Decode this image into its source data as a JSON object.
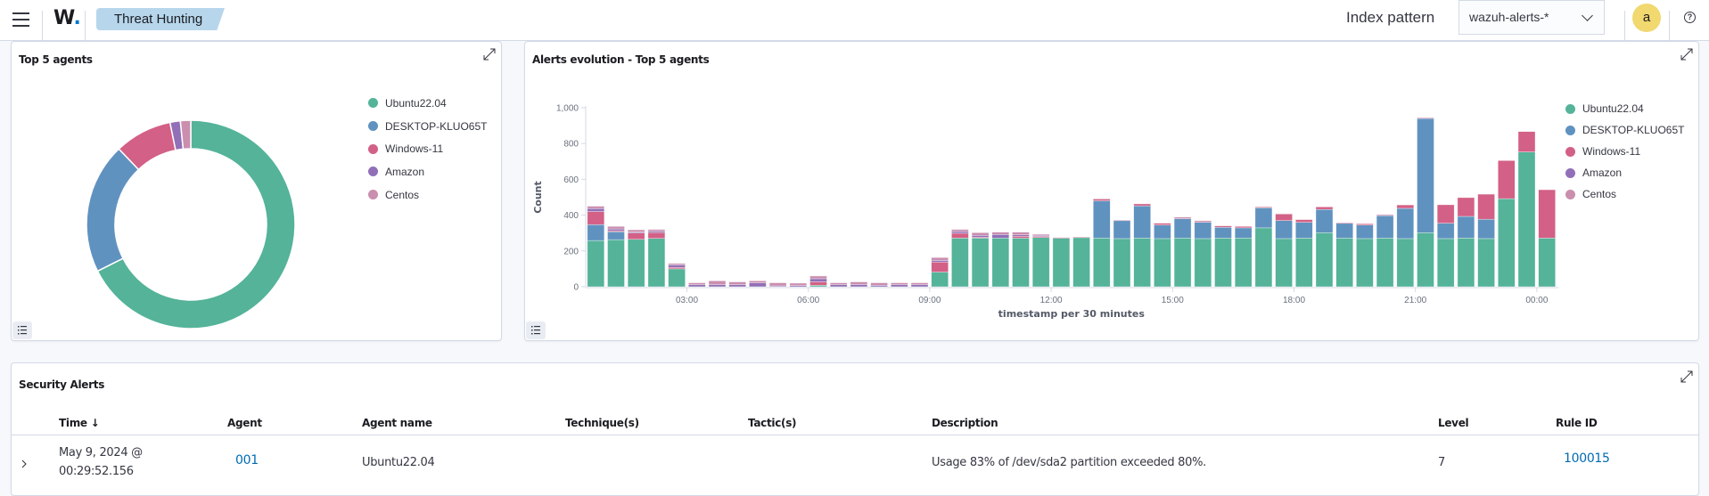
{
  "header": {
    "logo": "W.",
    "app_tab": "Threat Hunting",
    "index_pattern_label": "Index pattern",
    "index_pattern_value": "wazuh-alerts-*",
    "avatar_initial": "a",
    "help_symbol": "?"
  },
  "colors": {
    "Ubuntu22.04": "#54B399",
    "DESKTOP-KLUO65T": "#6092C0",
    "Windows-11": "#D36086",
    "Amazon": "#9170B8",
    "Centos": "#CA8EAE"
  },
  "top_agents": {
    "title": "Top 5 agents",
    "legend": [
      "Ubuntu22.04",
      "DESKTOP-KLUO65T",
      "Windows-11",
      "Amazon",
      "Centos"
    ]
  },
  "alerts_evolution": {
    "title": "Alerts evolution - Top 5 agents",
    "legend": [
      "Ubuntu22.04",
      "DESKTOP-KLUO65T",
      "Windows-11",
      "Amazon",
      "Centos"
    ]
  },
  "chart_data": [
    {
      "type": "pie",
      "donut": true,
      "title": "Top 5 agents",
      "labels": [
        "Ubuntu22.04",
        "DESKTOP-KLUO65T",
        "Windows-11",
        "Amazon",
        "Centos"
      ],
      "values": [
        67.6,
        20.3,
        8.9,
        1.6,
        1.6
      ],
      "legend_position": "right"
    },
    {
      "type": "bar",
      "stacked": true,
      "title": "Alerts evolution - Top 5 agents",
      "xlabel": "timestamp per 30 minutes",
      "ylabel": "Count",
      "ylim": [
        0,
        1000
      ],
      "yticks": [
        "0",
        "200",
        "400",
        "600",
        "800",
        "1,000"
      ],
      "xticks": [
        "03:00",
        "06:00",
        "09:00",
        "12:00",
        "15:00",
        "18:00",
        "21:00",
        "00:00"
      ],
      "legend_position": "right",
      "categories": [
        "00:30",
        "01:00",
        "01:30",
        "02:00",
        "02:30",
        "03:00",
        "03:30",
        "04:00",
        "04:30",
        "05:00",
        "05:30",
        "06:00",
        "06:30",
        "07:00",
        "07:30",
        "08:00",
        "08:30",
        "09:00",
        "09:30",
        "10:00",
        "10:30",
        "11:00",
        "11:30",
        "12:00",
        "12:30",
        "13:00",
        "13:30",
        "14:00",
        "14:30",
        "15:00",
        "15:30",
        "16:00",
        "16:30",
        "17:00",
        "17:30",
        "18:00",
        "18:30",
        "19:00",
        "19:30",
        "20:00",
        "20:30",
        "21:00",
        "21:30",
        "22:00",
        "22:30",
        "23:00",
        "23:30",
        "00:00"
      ],
      "series": [
        {
          "name": "Ubuntu22.04",
          "values": [
            258,
            263,
            265,
            270,
            100,
            0,
            0,
            0,
            0,
            0,
            0,
            8,
            0,
            0,
            0,
            0,
            0,
            82,
            272,
            272,
            272,
            272,
            275,
            272,
            275,
            272,
            269,
            272,
            269,
            272,
            269,
            272,
            272,
            329,
            269,
            272,
            302,
            272,
            269,
            272,
            269,
            302,
            269,
            272,
            269,
            492,
            753,
            272
          ]
        },
        {
          "name": "DESKTOP-KLUO65T",
          "values": [
            89,
            44,
            0,
            0,
            0,
            0,
            0,
            0,
            0,
            0,
            0,
            0,
            0,
            0,
            0,
            0,
            0,
            0,
            0,
            0,
            0,
            0,
            0,
            0,
            0,
            208,
            101,
            180,
            76,
            108,
            91,
            60,
            57,
            112,
            101,
            88,
            130,
            83,
            76,
            125,
            169,
            638,
            86,
            121,
            108,
            0,
            0,
            0
          ]
        },
        {
          "name": "Windows-11",
          "values": [
            73,
            6,
            35,
            33,
            8,
            0,
            0,
            0,
            0,
            0,
            0,
            20,
            0,
            0,
            0,
            0,
            0,
            56,
            27,
            5,
            0,
            10,
            6,
            3,
            3,
            10,
            0,
            11,
            10,
            0,
            0,
            8,
            8,
            5,
            37,
            15,
            14,
            3,
            7,
            0,
            19,
            0,
            103,
            105,
            140,
            213,
            114,
            270
          ]
        },
        {
          "name": "Amazon",
          "values": [
            17,
            10,
            5,
            7,
            14,
            12,
            12,
            12,
            22,
            5,
            7,
            17,
            12,
            12,
            8,
            12,
            12,
            9,
            10,
            10,
            20,
            8,
            6,
            0,
            0,
            0,
            0,
            0,
            0,
            0,
            0,
            0,
            0,
            0,
            0,
            0,
            0,
            0,
            0,
            0,
            0,
            0,
            0,
            0,
            0,
            0,
            0,
            0
          ]
        },
        {
          "name": "Centos",
          "values": [
            13,
            14,
            13,
            10,
            8,
            10,
            21,
            15,
            11,
            17,
            13,
            15,
            10,
            15,
            14,
            10,
            10,
            16,
            11,
            15,
            13,
            15,
            6,
            0,
            0,
            3,
            3,
            0,
            0,
            9,
            9,
            0,
            0,
            0,
            2,
            0,
            0,
            0,
            0,
            6,
            0,
            5,
            0,
            0,
            0,
            0,
            0,
            0
          ]
        }
      ]
    }
  ],
  "security_alerts": {
    "title": "Security Alerts",
    "columns": [
      "Time",
      "Agent",
      "Agent name",
      "Technique(s)",
      "Tactic(s)",
      "Description",
      "Level",
      "Rule ID"
    ],
    "sort_indicator": "↓",
    "rows": [
      {
        "time_date": "May 9, 2024 @",
        "time_clock": "00:29:52.156",
        "agent": "001",
        "agent_name": "Ubuntu22.04",
        "techniques": "",
        "tactics": "",
        "description": "Usage 83% of /dev/sda2 partition exceeded 80%.",
        "level": "7",
        "rule_id": "100015"
      }
    ]
  }
}
